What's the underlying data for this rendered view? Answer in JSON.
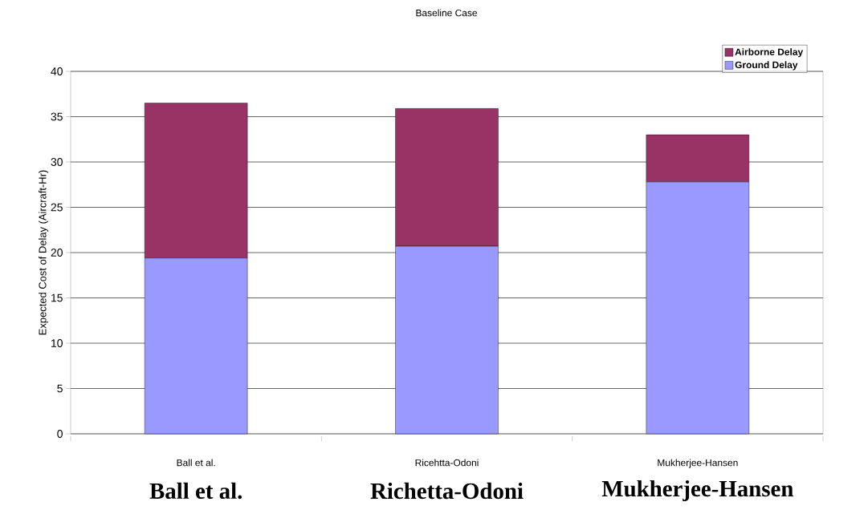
{
  "chart_data": {
    "type": "bar",
    "title": "Baseline Case",
    "ylabel": "Expected Cost of Delay (Aircraft-Hr)",
    "categories": [
      "Ball et al.",
      "Ricehtta-Odoni",
      "Mukherjee-Hansen"
    ],
    "series": [
      {
        "name": "Ground Delay",
        "color": "#9999ff",
        "values": [
          19.4,
          20.7,
          27.8
        ]
      },
      {
        "name": "Airborne Delay",
        "color": "#993366",
        "values": [
          17.1,
          15.2,
          5.2
        ]
      }
    ],
    "stacked": true,
    "ylim": [
      0,
      40
    ],
    "yticks": [
      0,
      5,
      10,
      15,
      20,
      25,
      30,
      35,
      40
    ],
    "grid": "y",
    "legend": "top right",
    "annotations": [
      "Ball et al.",
      "Richetta-Odoni",
      "Mukherjee-Hansen"
    ]
  }
}
